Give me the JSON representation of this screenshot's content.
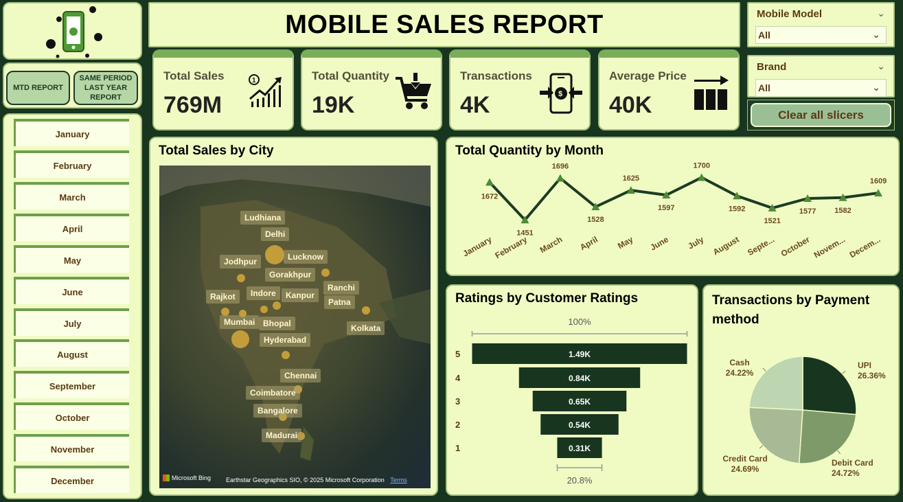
{
  "title": "MOBILE SALES REPORT",
  "colors": {
    "background": "#17351f",
    "panel": "#f0fbc4",
    "accent": "#79ad59",
    "dark": "#1c3c23",
    "text_brown": "#5a3a12"
  },
  "logo": {
    "icon": "phone-money-icon"
  },
  "report_buttons": {
    "mtd": "MTD REPORT",
    "same_period": "SAME PERIOD LAST YEAR REPORT"
  },
  "months": [
    "January",
    "February",
    "March",
    "April",
    "May",
    "June",
    "July",
    "August",
    "September",
    "October",
    "November",
    "December"
  ],
  "filters": {
    "model": {
      "label": "Mobile Model",
      "value": "All"
    },
    "brand": {
      "label": "Brand",
      "value": "All"
    },
    "clear": "Clear all slicers"
  },
  "kpis": [
    {
      "label": "Total Sales",
      "value": "769M",
      "icon": "growth-chart-icon"
    },
    {
      "label": "Total Quantity",
      "value": "19K",
      "icon": "cart-icon"
    },
    {
      "label": "Transactions",
      "value": "4K",
      "icon": "phone-transfer-icon"
    },
    {
      "label": "Average Price",
      "value": "40K",
      "icon": "arrow-bars-icon"
    }
  ],
  "city_map": {
    "title": "Total Sales by City",
    "cities": [
      "Ludhiana",
      "Delhi",
      "Lucknow",
      "Jodhpur",
      "Gorakhpur",
      "Ranchi",
      "Rajkot",
      "Indore",
      "Kanpur",
      "Patna",
      "Mumbai",
      "Bhopal",
      "Kolkata",
      "Hyderabad",
      "Chennai",
      "Coimbatore",
      "Bangalore",
      "Madurai"
    ],
    "bing": "Microsoft Bing",
    "credit": "Earthstar Geographics SIO, © 2025 Microsoft Corporation",
    "terms": "Terms"
  },
  "chart_data": [
    {
      "type": "line",
      "title": "Total Quantity by Month",
      "categories": [
        "January",
        "February",
        "March",
        "April",
        "May",
        "June",
        "July",
        "August",
        "Septe...",
        "October",
        "Novem...",
        "Decem..."
      ],
      "values": [
        1672,
        1451,
        1696,
        1528,
        1625,
        1597,
        1700,
        1592,
        1521,
        1577,
        1582,
        1609
      ]
    },
    {
      "type": "bar",
      "title": "Ratings by Customer Ratings",
      "categories": [
        "5",
        "4",
        "3",
        "2",
        "1"
      ],
      "values": [
        1490,
        840,
        650,
        540,
        310
      ],
      "labels": [
        "1.49K",
        "0.84K",
        "0.65K",
        "0.54K",
        "0.31K"
      ],
      "top_label": "100%",
      "bottom_label": "20.8%"
    },
    {
      "type": "pie",
      "title": "Transactions by Payment method",
      "slices": [
        {
          "name": "UPI",
          "value": 26.36,
          "label": "26.36%",
          "color": "#17351f"
        },
        {
          "name": "Debit Card",
          "value": 24.72,
          "label": "24.72%",
          "color": "#7e9a69"
        },
        {
          "name": "Credit Card",
          "value": 24.69,
          "label": "24.69%",
          "color": "#a8b995"
        },
        {
          "name": "Cash",
          "value": 24.22,
          "label": "24.22%",
          "color": "#bdd6b1"
        }
      ]
    }
  ]
}
